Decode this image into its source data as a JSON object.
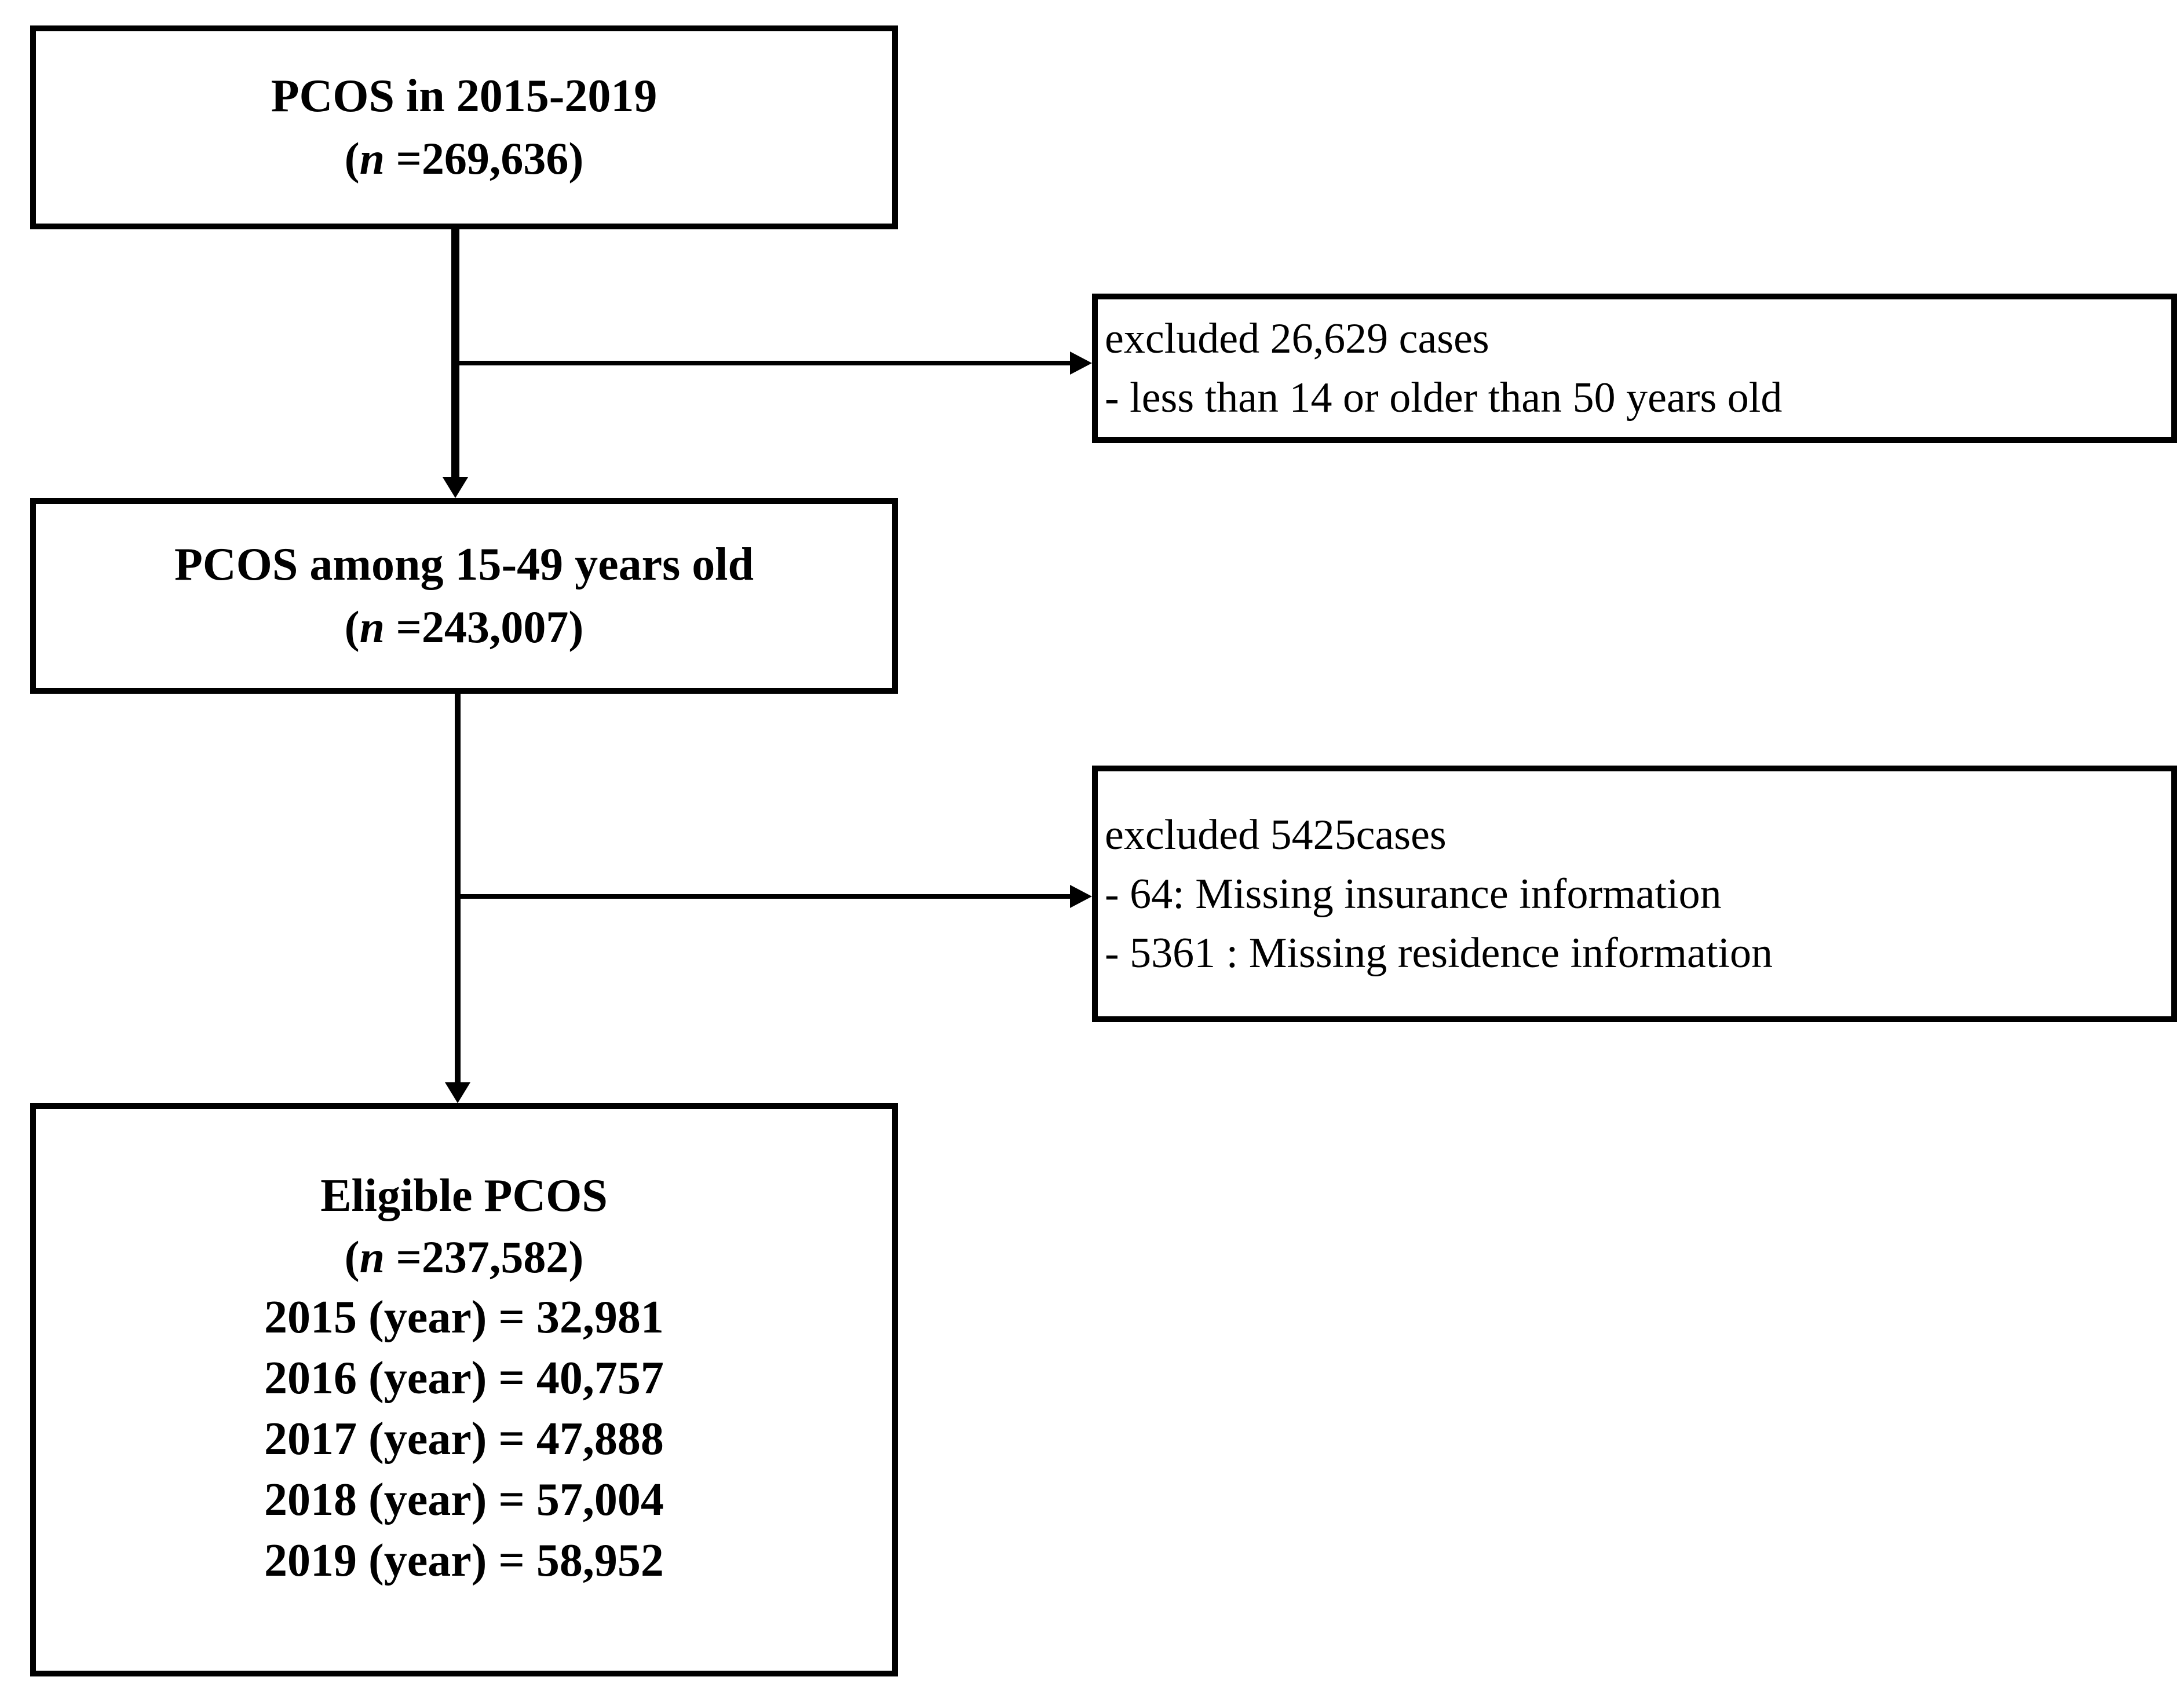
{
  "figure": {
    "background": "#ffffff",
    "line_color": "#000000",
    "boxes": {
      "initial": {
        "title": "PCOS in 2015-2019",
        "n_open": "(",
        "n_var": "n",
        "n_rest": " =269,636)"
      },
      "age_filtered": {
        "title": "PCOS among 15-49 years old",
        "n_open": "(",
        "n_var": "n",
        "n_rest": " =243,007)"
      },
      "eligible": {
        "title": "Eligible PCOS",
        "n_open": "(",
        "n_var": "n",
        "n_rest": " =237,582)",
        "year_lines": [
          "2015 (year) = 32,981",
          "2016 (year) = 40,757",
          "2017 (year) = 47,888",
          "2018 (year) = 57,004",
          "2019 (year) = 58,952"
        ]
      }
    },
    "exclusions": {
      "first": {
        "lines": [
          "excluded 26,629 cases",
          "- less than 14 or older than 50 years old"
        ]
      },
      "second": {
        "lines": [
          "excluded 5425cases",
          "- 64: Missing insurance information",
          "- 5361 : Missing residence information"
        ]
      }
    }
  }
}
